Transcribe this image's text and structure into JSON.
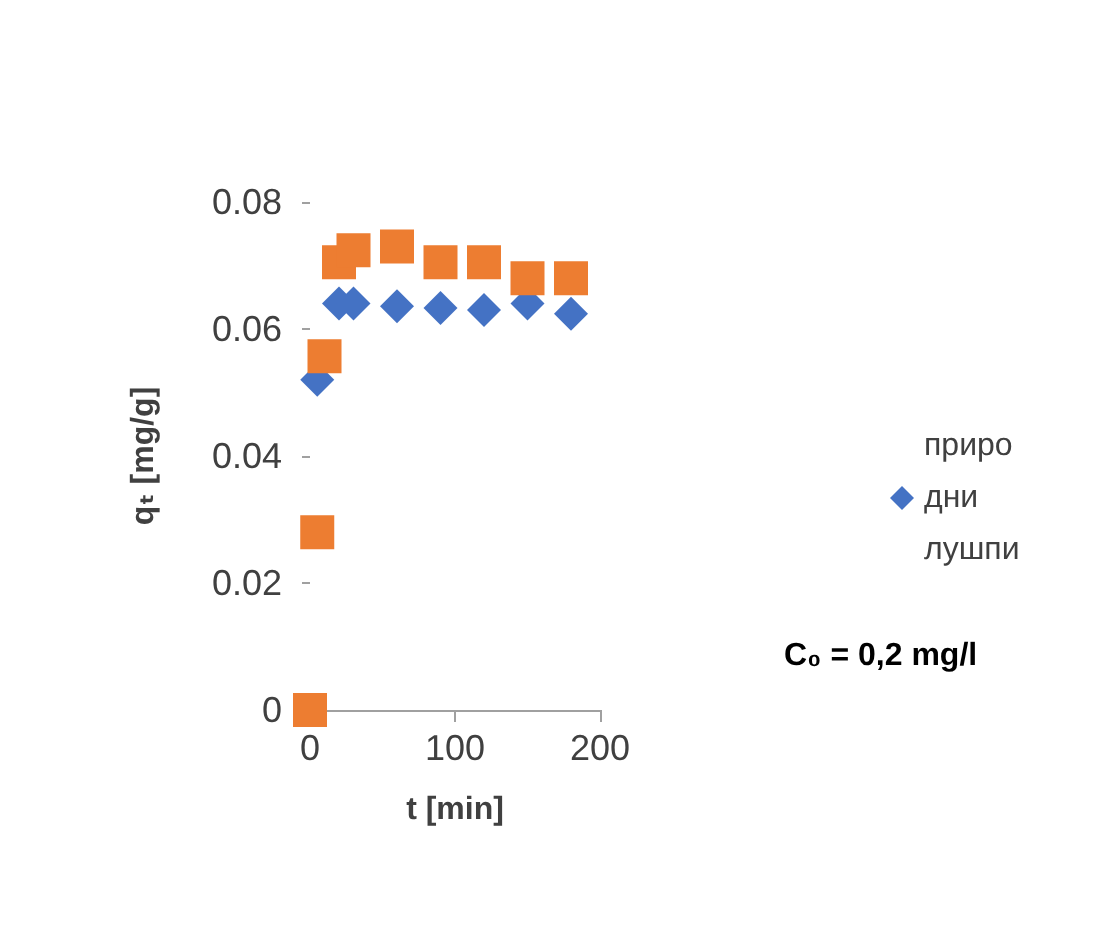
{
  "chart_data": {
    "type": "scatter",
    "xlabel": "t [min]",
    "ylabel": "qₜ [mg/g]",
    "annotations": [
      "C₀ = 0,2 mg/l"
    ],
    "series": [
      {
        "name": "природни лушпи",
        "color": "#4472c4",
        "marker": "diamond",
        "x": [
          5,
          20,
          30,
          60,
          90,
          120,
          150,
          180
        ],
        "values": [
          0.052,
          0.064,
          0.064,
          0.0636,
          0.0633,
          0.063,
          0.064,
          0.0624
        ]
      },
      {
        "color": "#ed7d31",
        "marker": "square",
        "x": [
          0,
          5,
          10,
          20,
          30,
          60,
          90,
          120,
          150,
          180
        ],
        "values": [
          0,
          0.028,
          0.0557,
          0.0705,
          0.0724,
          0.073,
          0.0705,
          0.0705,
          0.068,
          0.068
        ]
      }
    ],
    "xlim": [
      0,
      200
    ],
    "xticks": [
      0,
      100,
      200
    ],
    "ylim": [
      0,
      0.08
    ],
    "yticks": [
      0,
      0.02,
      0.04,
      0.06,
      0.08
    ],
    "grid": false,
    "legend": "right"
  }
}
